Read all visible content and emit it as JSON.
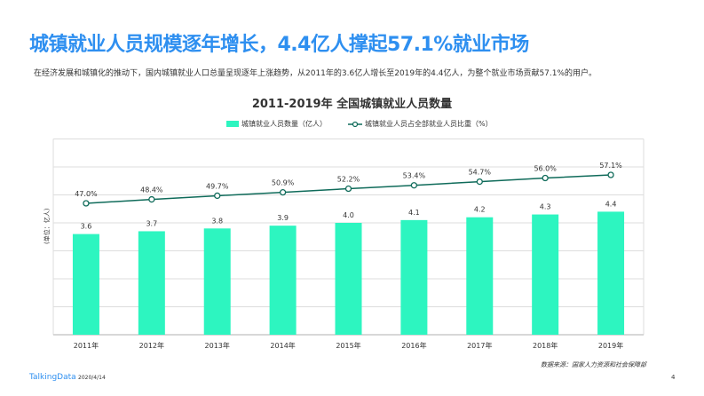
{
  "header": {
    "title": "城镇就业人员规模逐年增长，4.4亿人撑起57.1%就业市场",
    "subtitle": "在经济发展和城镇化的推动下，国内城镇就业人口总量呈现逐年上涨趋势，从2011年的3.6亿人增长至2019年的4.4亿人，为整个就业市场贡献57.1%的用户。"
  },
  "chart_data": {
    "type": "bar+line",
    "title": "2011-2019年  全国城镇就业人员数量",
    "ylabel": "(单位：亿人)",
    "categories": [
      "2011年",
      "2012年",
      "2013年",
      "2014年",
      "2015年",
      "2016年",
      "2017年",
      "2018年",
      "2019年"
    ],
    "series": [
      {
        "name": "城镇就业人员数量（亿人）",
        "type": "bar",
        "color": "#2df5c0",
        "values": [
          3.6,
          3.7,
          3.8,
          3.9,
          4.0,
          4.1,
          4.2,
          4.3,
          4.4
        ],
        "labels": [
          "3.6",
          "3.7",
          "3.8",
          "3.9",
          "4.0",
          "4.1",
          "4.2",
          "4.3",
          "4.4"
        ]
      },
      {
        "name": "城镇就业人员占全部就业人员比重（%）",
        "type": "line",
        "color": "#0f6b5a",
        "values": [
          47.0,
          48.4,
          49.7,
          50.9,
          52.2,
          53.4,
          54.7,
          56.0,
          57.1
        ],
        "labels": [
          "47.0%",
          "48.4%",
          "49.7%",
          "50.9%",
          "52.2%",
          "53.4%",
          "54.7%",
          "56.0%",
          "57.1%"
        ]
      }
    ],
    "ylim": [
      0,
      7
    ],
    "grid": true,
    "legend": "top"
  },
  "footer": {
    "source": "数据来源：国家人力资源和社会保障部",
    "brand": "TalkingData",
    "date": "2020/4/14",
    "page": "4"
  }
}
